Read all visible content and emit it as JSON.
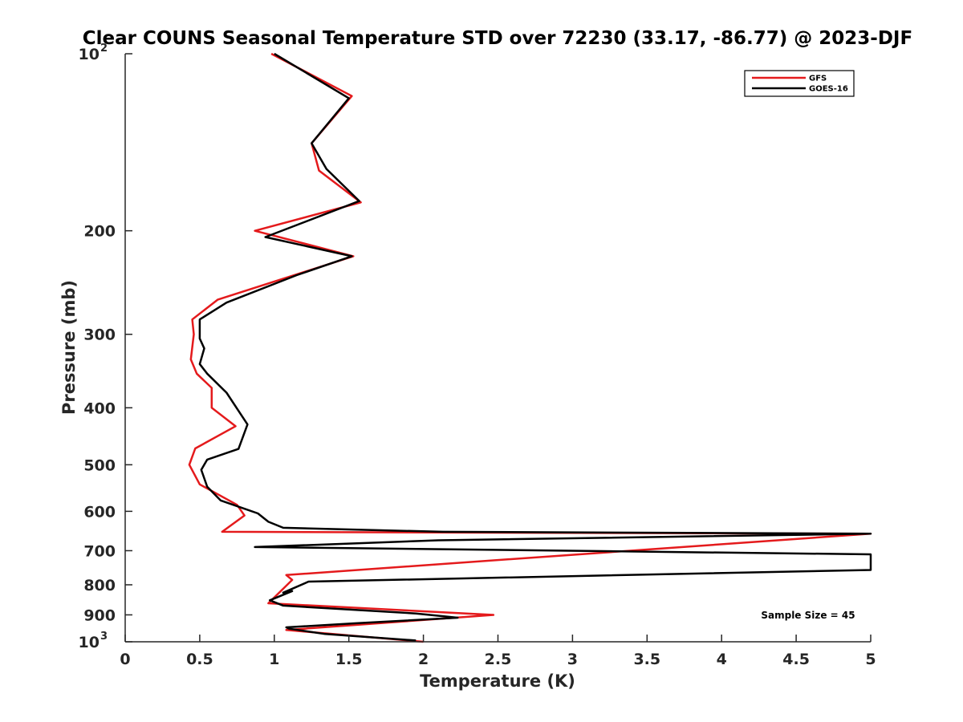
{
  "chart_data": {
    "type": "line",
    "title": "Clear COUNS Seasonal Temperature STD over 72230 (33.17, -86.77) @ 2023-DJF",
    "xlabel": "Temperature (K)",
    "ylabel": "Pressure (mb)",
    "xlim": [
      0,
      5
    ],
    "ylim": [
      1000,
      100
    ],
    "yscale": "log",
    "y_reversed": true,
    "grid": false,
    "legend_position": "top-right",
    "x_ticks": [
      "0",
      "0.5",
      "1",
      "1.5",
      "2",
      "2.5",
      "3",
      "3.5",
      "4",
      "4.5",
      "5"
    ],
    "y_ticks": [
      {
        "value": 100,
        "base": "10",
        "exp": "2"
      },
      {
        "value": 200,
        "label": "200"
      },
      {
        "value": 300,
        "label": "300"
      },
      {
        "value": 400,
        "label": "400"
      },
      {
        "value": 500,
        "label": "500"
      },
      {
        "value": 600,
        "label": "600"
      },
      {
        "value": 700,
        "label": "700"
      },
      {
        "value": 800,
        "label": "800"
      },
      {
        "value": 900,
        "label": "900"
      },
      {
        "value": 1000,
        "base": "10",
        "exp": "3"
      }
    ],
    "annotation": "Sample Size = 45",
    "series": [
      {
        "name": "GFS",
        "color": "#e41a1c",
        "x": [
          0.98,
          1.52,
          1.25,
          1.3,
          1.58,
          0.87,
          1.53,
          0.62,
          0.45,
          0.46,
          0.44,
          0.48,
          0.58,
          0.58,
          0.74,
          0.47,
          0.43,
          0.5,
          0.75,
          0.8,
          0.65,
          5.0,
          1.08,
          1.12,
          0.96,
          2.47,
          1.08,
          2.0
        ],
        "y": [
          100,
          118,
          142,
          158,
          179,
          200,
          221,
          262,
          283,
          300,
          331,
          350,
          370,
          400,
          430,
          469,
          500,
          540,
          585,
          610,
          650,
          655,
          770,
          785,
          860,
          900,
          955,
          1000
        ]
      },
      {
        "name": "GOES-16",
        "color": "#000000",
        "x": [
          1.0,
          1.5,
          1.25,
          1.35,
          1.57,
          0.94,
          1.52,
          1.15,
          0.68,
          0.5,
          0.5,
          0.53,
          0.5,
          0.55,
          0.68,
          0.82,
          0.76,
          0.55,
          0.51,
          0.55,
          0.64,
          0.89,
          0.96,
          1.06,
          2.13,
          5.0,
          2.1,
          0.87,
          5.0,
          5.0,
          1.23,
          1.06,
          1.12,
          0.97,
          1.06,
          1.95,
          2.23,
          1.55,
          1.08,
          1.1,
          1.34,
          1.95
        ],
        "y": [
          100,
          119,
          142,
          157,
          178,
          205,
          221,
          238,
          265,
          283,
          305,
          317,
          337,
          350,
          377,
          427,
          470,
          490,
          510,
          545,
          575,
          605,
          625,
          640,
          650,
          655,
          672,
          690,
          710,
          755,
          790,
          825,
          820,
          850,
          868,
          895,
          910,
          930,
          945,
          950,
          970,
          995
        ]
      }
    ]
  }
}
